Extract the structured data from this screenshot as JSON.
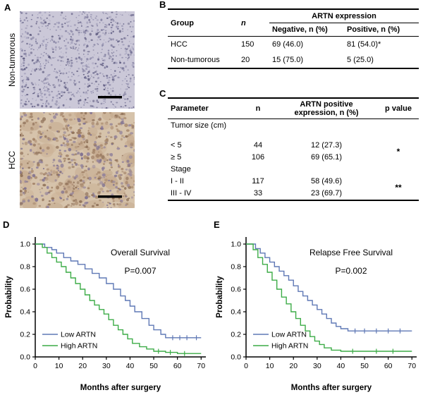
{
  "panels": {
    "a": "A",
    "b": "B",
    "c": "C",
    "d": "D",
    "e": "E"
  },
  "panelA": {
    "images": [
      {
        "label": "Non-tumorous",
        "bg": "#cbc8d8",
        "palette": [
          "#8a87a6",
          "#6f6c90",
          "#9e9bb8",
          "#5d5a7e"
        ]
      },
      {
        "label": "HCC",
        "bg": "#d6c3ab",
        "palette": [
          "#a08065",
          "#8d6f57",
          "#93839b",
          "#7e7090",
          "#ab8d72"
        ],
        "blob_palette": [
          "#c9ad90",
          "#bfa184"
        ]
      }
    ]
  },
  "tableB": {
    "col_group": "Group",
    "col_n": "n",
    "col_artn": "ARTN expression",
    "col_negative": "Negative, n (%)",
    "col_positive": "Positive, n (%)",
    "rows": [
      {
        "group": "HCC",
        "n": "150",
        "negative": "69 (46.0)",
        "positive": "81 (54.0)*"
      },
      {
        "group": "Non-tumorous",
        "n": "20",
        "negative": "15 (75.0)",
        "positive": "5 (25.0)"
      }
    ]
  },
  "tableC": {
    "col_parameter": "Parameter",
    "col_n": "n",
    "col_expression": "ARTN positive expression, n (%)",
    "col_p": "p value",
    "sections": [
      {
        "header": "Tumor size (cm)",
        "rows": [
          {
            "parameter": "< 5",
            "n": "44",
            "expression": "12 (27.3)"
          },
          {
            "parameter": "≥ 5",
            "n": "106",
            "expression": "69 (65.1)"
          }
        ],
        "p": "*"
      },
      {
        "header": "Stage",
        "rows": [
          {
            "parameter": "I - II",
            "n": "117",
            "expression": "58 (49.6)"
          },
          {
            "parameter": "III - IV",
            "n": "33",
            "expression": "23 (69.7)"
          }
        ],
        "p": "**"
      }
    ]
  },
  "chart_data": [
    {
      "type": "line",
      "subtype": "kaplan-meier",
      "title": "Overall Survival",
      "p_value": "P=0.007",
      "xlabel": "Months after surgery",
      "ylabel": "Probability",
      "xlim": [
        0,
        72
      ],
      "ylim": [
        0,
        1.0
      ],
      "xticks": [
        0,
        10,
        20,
        30,
        40,
        50,
        60,
        70
      ],
      "yticks": [
        0.0,
        0.2,
        0.4,
        0.6,
        0.8,
        1.0
      ],
      "grid": false,
      "legend_position": "lower-left",
      "series": [
        {
          "name": "Low ARTN",
          "color": "#5f78b5",
          "step_points": [
            [
              0,
              1.0
            ],
            [
              4,
              0.97
            ],
            [
              7,
              0.95
            ],
            [
              9,
              0.92
            ],
            [
              12,
              0.88
            ],
            [
              15,
              0.85
            ],
            [
              18,
              0.82
            ],
            [
              21,
              0.78
            ],
            [
              24,
              0.74
            ],
            [
              27,
              0.7
            ],
            [
              30,
              0.65
            ],
            [
              33,
              0.6
            ],
            [
              36,
              0.54
            ],
            [
              38,
              0.5
            ],
            [
              40,
              0.45
            ],
            [
              42,
              0.4
            ],
            [
              45,
              0.34
            ],
            [
              48,
              0.28
            ],
            [
              50,
              0.24
            ],
            [
              53,
              0.2
            ],
            [
              55,
              0.17
            ],
            [
              70,
              0.17
            ]
          ],
          "censor_x": [
            58,
            61,
            64,
            68
          ]
        },
        {
          "name": "High ARTN",
          "color": "#3cac47",
          "step_points": [
            [
              0,
              1.0
            ],
            [
              3,
              0.97
            ],
            [
              5,
              0.92
            ],
            [
              7,
              0.88
            ],
            [
              9,
              0.84
            ],
            [
              11,
              0.8
            ],
            [
              13,
              0.75
            ],
            [
              15,
              0.7
            ],
            [
              17,
              0.65
            ],
            [
              19,
              0.6
            ],
            [
              21,
              0.55
            ],
            [
              23,
              0.5
            ],
            [
              25,
              0.46
            ],
            [
              27,
              0.42
            ],
            [
              29,
              0.38
            ],
            [
              31,
              0.33
            ],
            [
              33,
              0.28
            ],
            [
              35,
              0.24
            ],
            [
              37,
              0.2
            ],
            [
              39,
              0.16
            ],
            [
              41,
              0.12
            ],
            [
              44,
              0.09
            ],
            [
              47,
              0.07
            ],
            [
              50,
              0.05
            ],
            [
              55,
              0.04
            ],
            [
              60,
              0.03
            ],
            [
              70,
              0.03
            ]
          ],
          "censor_x": [
            52,
            57,
            63
          ]
        }
      ]
    },
    {
      "type": "line",
      "subtype": "kaplan-meier",
      "title": "Relapse Free Survival",
      "p_value": "P=0.002",
      "xlabel": "Months after surgery",
      "ylabel": "Probability",
      "xlim": [
        0,
        72
      ],
      "ylim": [
        0,
        1.0
      ],
      "xticks": [
        0,
        10,
        20,
        30,
        40,
        50,
        60,
        70
      ],
      "yticks": [
        0.0,
        0.2,
        0.4,
        0.6,
        0.8,
        1.0
      ],
      "grid": false,
      "legend_position": "lower-left",
      "series": [
        {
          "name": "Low ARTN",
          "color": "#5f78b5",
          "step_points": [
            [
              0,
              1.0
            ],
            [
              4,
              0.96
            ],
            [
              6,
              0.92
            ],
            [
              8,
              0.88
            ],
            [
              10,
              0.84
            ],
            [
              12,
              0.8
            ],
            [
              14,
              0.76
            ],
            [
              16,
              0.72
            ],
            [
              18,
              0.68
            ],
            [
              20,
              0.63
            ],
            [
              22,
              0.58
            ],
            [
              24,
              0.54
            ],
            [
              26,
              0.5
            ],
            [
              28,
              0.46
            ],
            [
              30,
              0.42
            ],
            [
              32,
              0.38
            ],
            [
              34,
              0.34
            ],
            [
              36,
              0.3
            ],
            [
              38,
              0.27
            ],
            [
              40,
              0.25
            ],
            [
              43,
              0.23
            ],
            [
              70,
              0.23
            ]
          ],
          "censor_x": [
            46,
            50,
            55,
            60,
            65
          ]
        },
        {
          "name": "High ARTN",
          "color": "#3cac47",
          "step_points": [
            [
              0,
              1.0
            ],
            [
              3,
              0.95
            ],
            [
              5,
              0.88
            ],
            [
              7,
              0.82
            ],
            [
              9,
              0.75
            ],
            [
              11,
              0.68
            ],
            [
              13,
              0.6
            ],
            [
              15,
              0.53
            ],
            [
              17,
              0.47
            ],
            [
              19,
              0.4
            ],
            [
              21,
              0.34
            ],
            [
              23,
              0.28
            ],
            [
              25,
              0.23
            ],
            [
              27,
              0.18
            ],
            [
              29,
              0.14
            ],
            [
              31,
              0.11
            ],
            [
              33,
              0.08
            ],
            [
              36,
              0.06
            ],
            [
              40,
              0.05
            ],
            [
              70,
              0.05
            ]
          ],
          "censor_x": [
            45,
            55,
            62
          ]
        }
      ]
    }
  ]
}
